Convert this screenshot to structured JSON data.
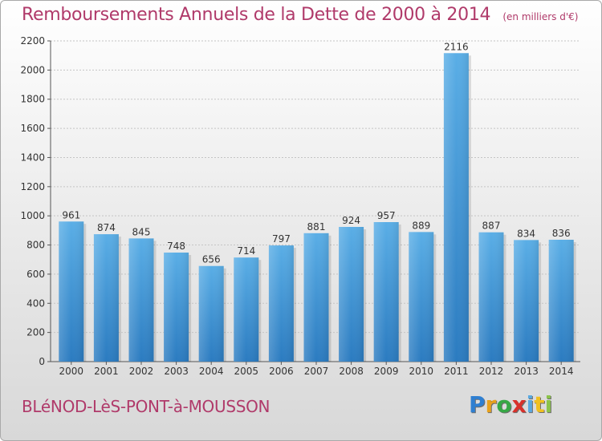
{
  "header": {
    "title": "Remboursements Annuels de la Dette de 2000 à 2014",
    "subtitle": "(en milliers d'€)"
  },
  "footer": {
    "commune": "BLéNOD-LèS-PONT-à-MOUSSON",
    "logo_letters": [
      "P",
      "r",
      "o",
      "x",
      "i",
      "t",
      "i"
    ]
  },
  "colors": {
    "bar_light": "#5aaee6",
    "bar_dark": "#2b7bc0",
    "title": "#b03a6a"
  },
  "chart_data": {
    "type": "bar",
    "categories": [
      "2000",
      "2001",
      "2002",
      "2003",
      "2004",
      "2005",
      "2006",
      "2007",
      "2008",
      "2009",
      "2010",
      "2011",
      "2012",
      "2013",
      "2014"
    ],
    "values": [
      961,
      874,
      845,
      748,
      656,
      714,
      797,
      881,
      924,
      957,
      889,
      2116,
      887,
      834,
      836
    ],
    "data_labels": [
      "961",
      "874",
      "845",
      "748",
      "656",
      "714",
      "797",
      "881",
      "924",
      "957",
      "889",
      "2116",
      "887",
      "834",
      "836"
    ],
    "title": "Remboursements Annuels de la Dette de 2000 à 2014",
    "xlabel": "",
    "ylabel": "",
    "ylim": [
      0,
      2200
    ],
    "yticks": [
      0,
      200,
      400,
      600,
      800,
      1000,
      1200,
      1400,
      1600,
      1800,
      2000,
      2200
    ],
    "grid": true,
    "legend": "none"
  }
}
